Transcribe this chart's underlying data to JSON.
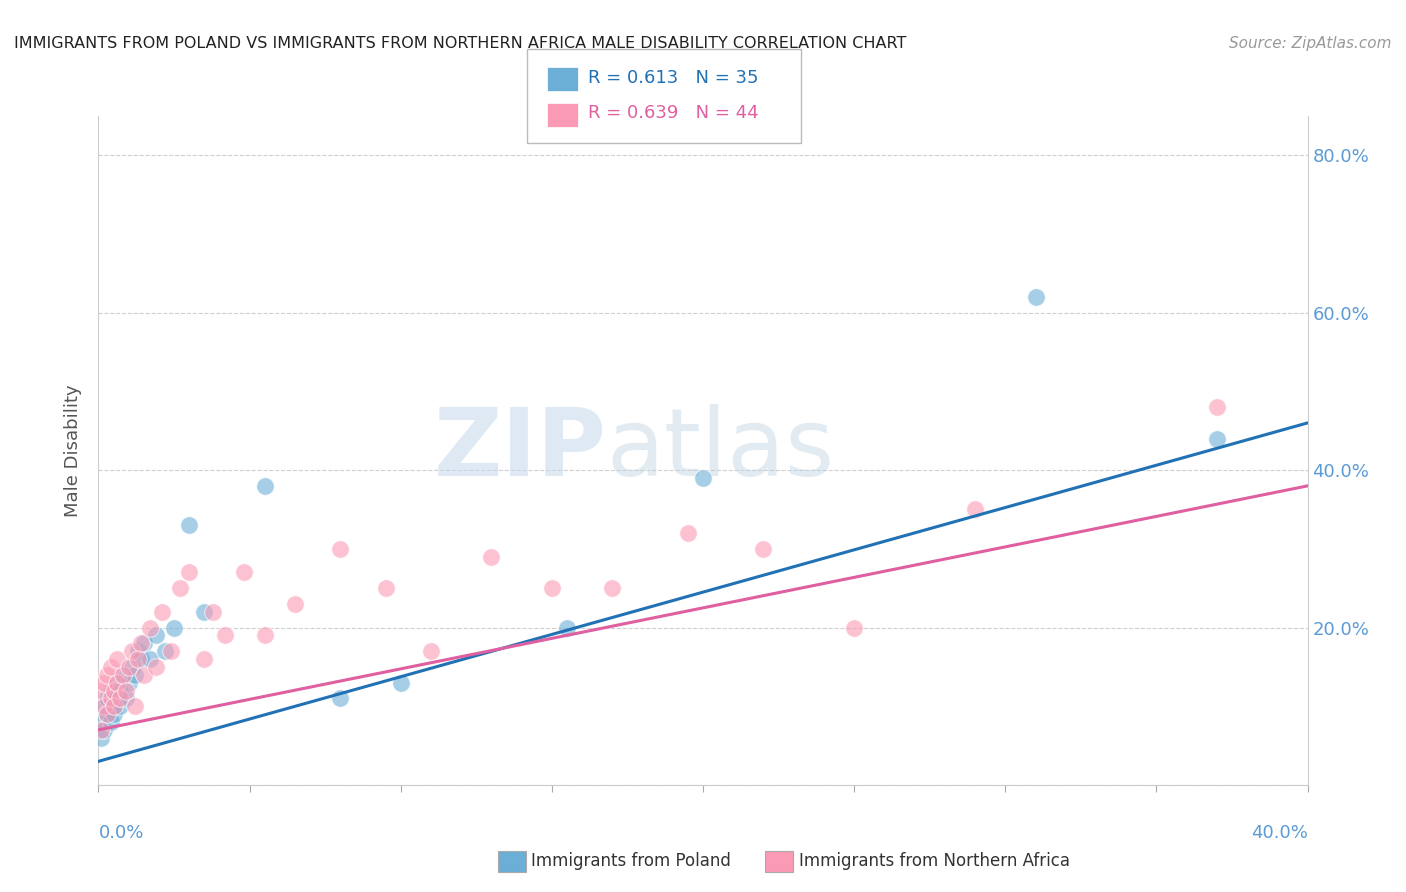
{
  "title": "IMMIGRANTS FROM POLAND VS IMMIGRANTS FROM NORTHERN AFRICA MALE DISABILITY CORRELATION CHART",
  "source": "Source: ZipAtlas.com",
  "ylabel": "Male Disability",
  "xlim": [
    0.0,
    0.4
  ],
  "ylim": [
    0.0,
    0.85
  ],
  "legend_r1": "R = 0.613",
  "legend_n1": "N = 35",
  "legend_r2": "R = 0.639",
  "legend_n2": "N = 44",
  "color_poland": "#6baed6",
  "color_nafric": "#fb9ab4",
  "color_poland_line": "#2171b5",
  "color_nafric_line": "#e05fa0",
  "background": "#ffffff",
  "watermark_zip": "ZIP",
  "watermark_atlas": "atlas",
  "poland_x": [
    0.001,
    0.001,
    0.002,
    0.002,
    0.003,
    0.003,
    0.004,
    0.004,
    0.005,
    0.005,
    0.006,
    0.006,
    0.007,
    0.007,
    0.008,
    0.009,
    0.01,
    0.011,
    0.012,
    0.013,
    0.014,
    0.015,
    0.017,
    0.019,
    0.022,
    0.025,
    0.03,
    0.035,
    0.055,
    0.08,
    0.1,
    0.155,
    0.2,
    0.31,
    0.37
  ],
  "poland_y": [
    0.06,
    0.08,
    0.07,
    0.1,
    0.09,
    0.11,
    0.08,
    0.12,
    0.1,
    0.09,
    0.11,
    0.13,
    0.12,
    0.1,
    0.14,
    0.11,
    0.13,
    0.15,
    0.14,
    0.17,
    0.16,
    0.18,
    0.16,
    0.19,
    0.17,
    0.2,
    0.33,
    0.22,
    0.38,
    0.11,
    0.13,
    0.2,
    0.39,
    0.62,
    0.44
  ],
  "nafric_x": [
    0.001,
    0.001,
    0.002,
    0.002,
    0.003,
    0.003,
    0.004,
    0.004,
    0.005,
    0.005,
    0.006,
    0.006,
    0.007,
    0.008,
    0.009,
    0.01,
    0.011,
    0.012,
    0.013,
    0.014,
    0.015,
    0.017,
    0.019,
    0.021,
    0.024,
    0.027,
    0.03,
    0.035,
    0.038,
    0.042,
    0.048,
    0.055,
    0.065,
    0.08,
    0.095,
    0.11,
    0.13,
    0.15,
    0.17,
    0.195,
    0.22,
    0.25,
    0.29,
    0.37
  ],
  "nafric_y": [
    0.07,
    0.12,
    0.1,
    0.13,
    0.09,
    0.14,
    0.11,
    0.15,
    0.12,
    0.1,
    0.13,
    0.16,
    0.11,
    0.14,
    0.12,
    0.15,
    0.17,
    0.1,
    0.16,
    0.18,
    0.14,
    0.2,
    0.15,
    0.22,
    0.17,
    0.25,
    0.27,
    0.16,
    0.22,
    0.19,
    0.27,
    0.19,
    0.23,
    0.3,
    0.25,
    0.17,
    0.29,
    0.25,
    0.25,
    0.32,
    0.3,
    0.2,
    0.35,
    0.48
  ]
}
